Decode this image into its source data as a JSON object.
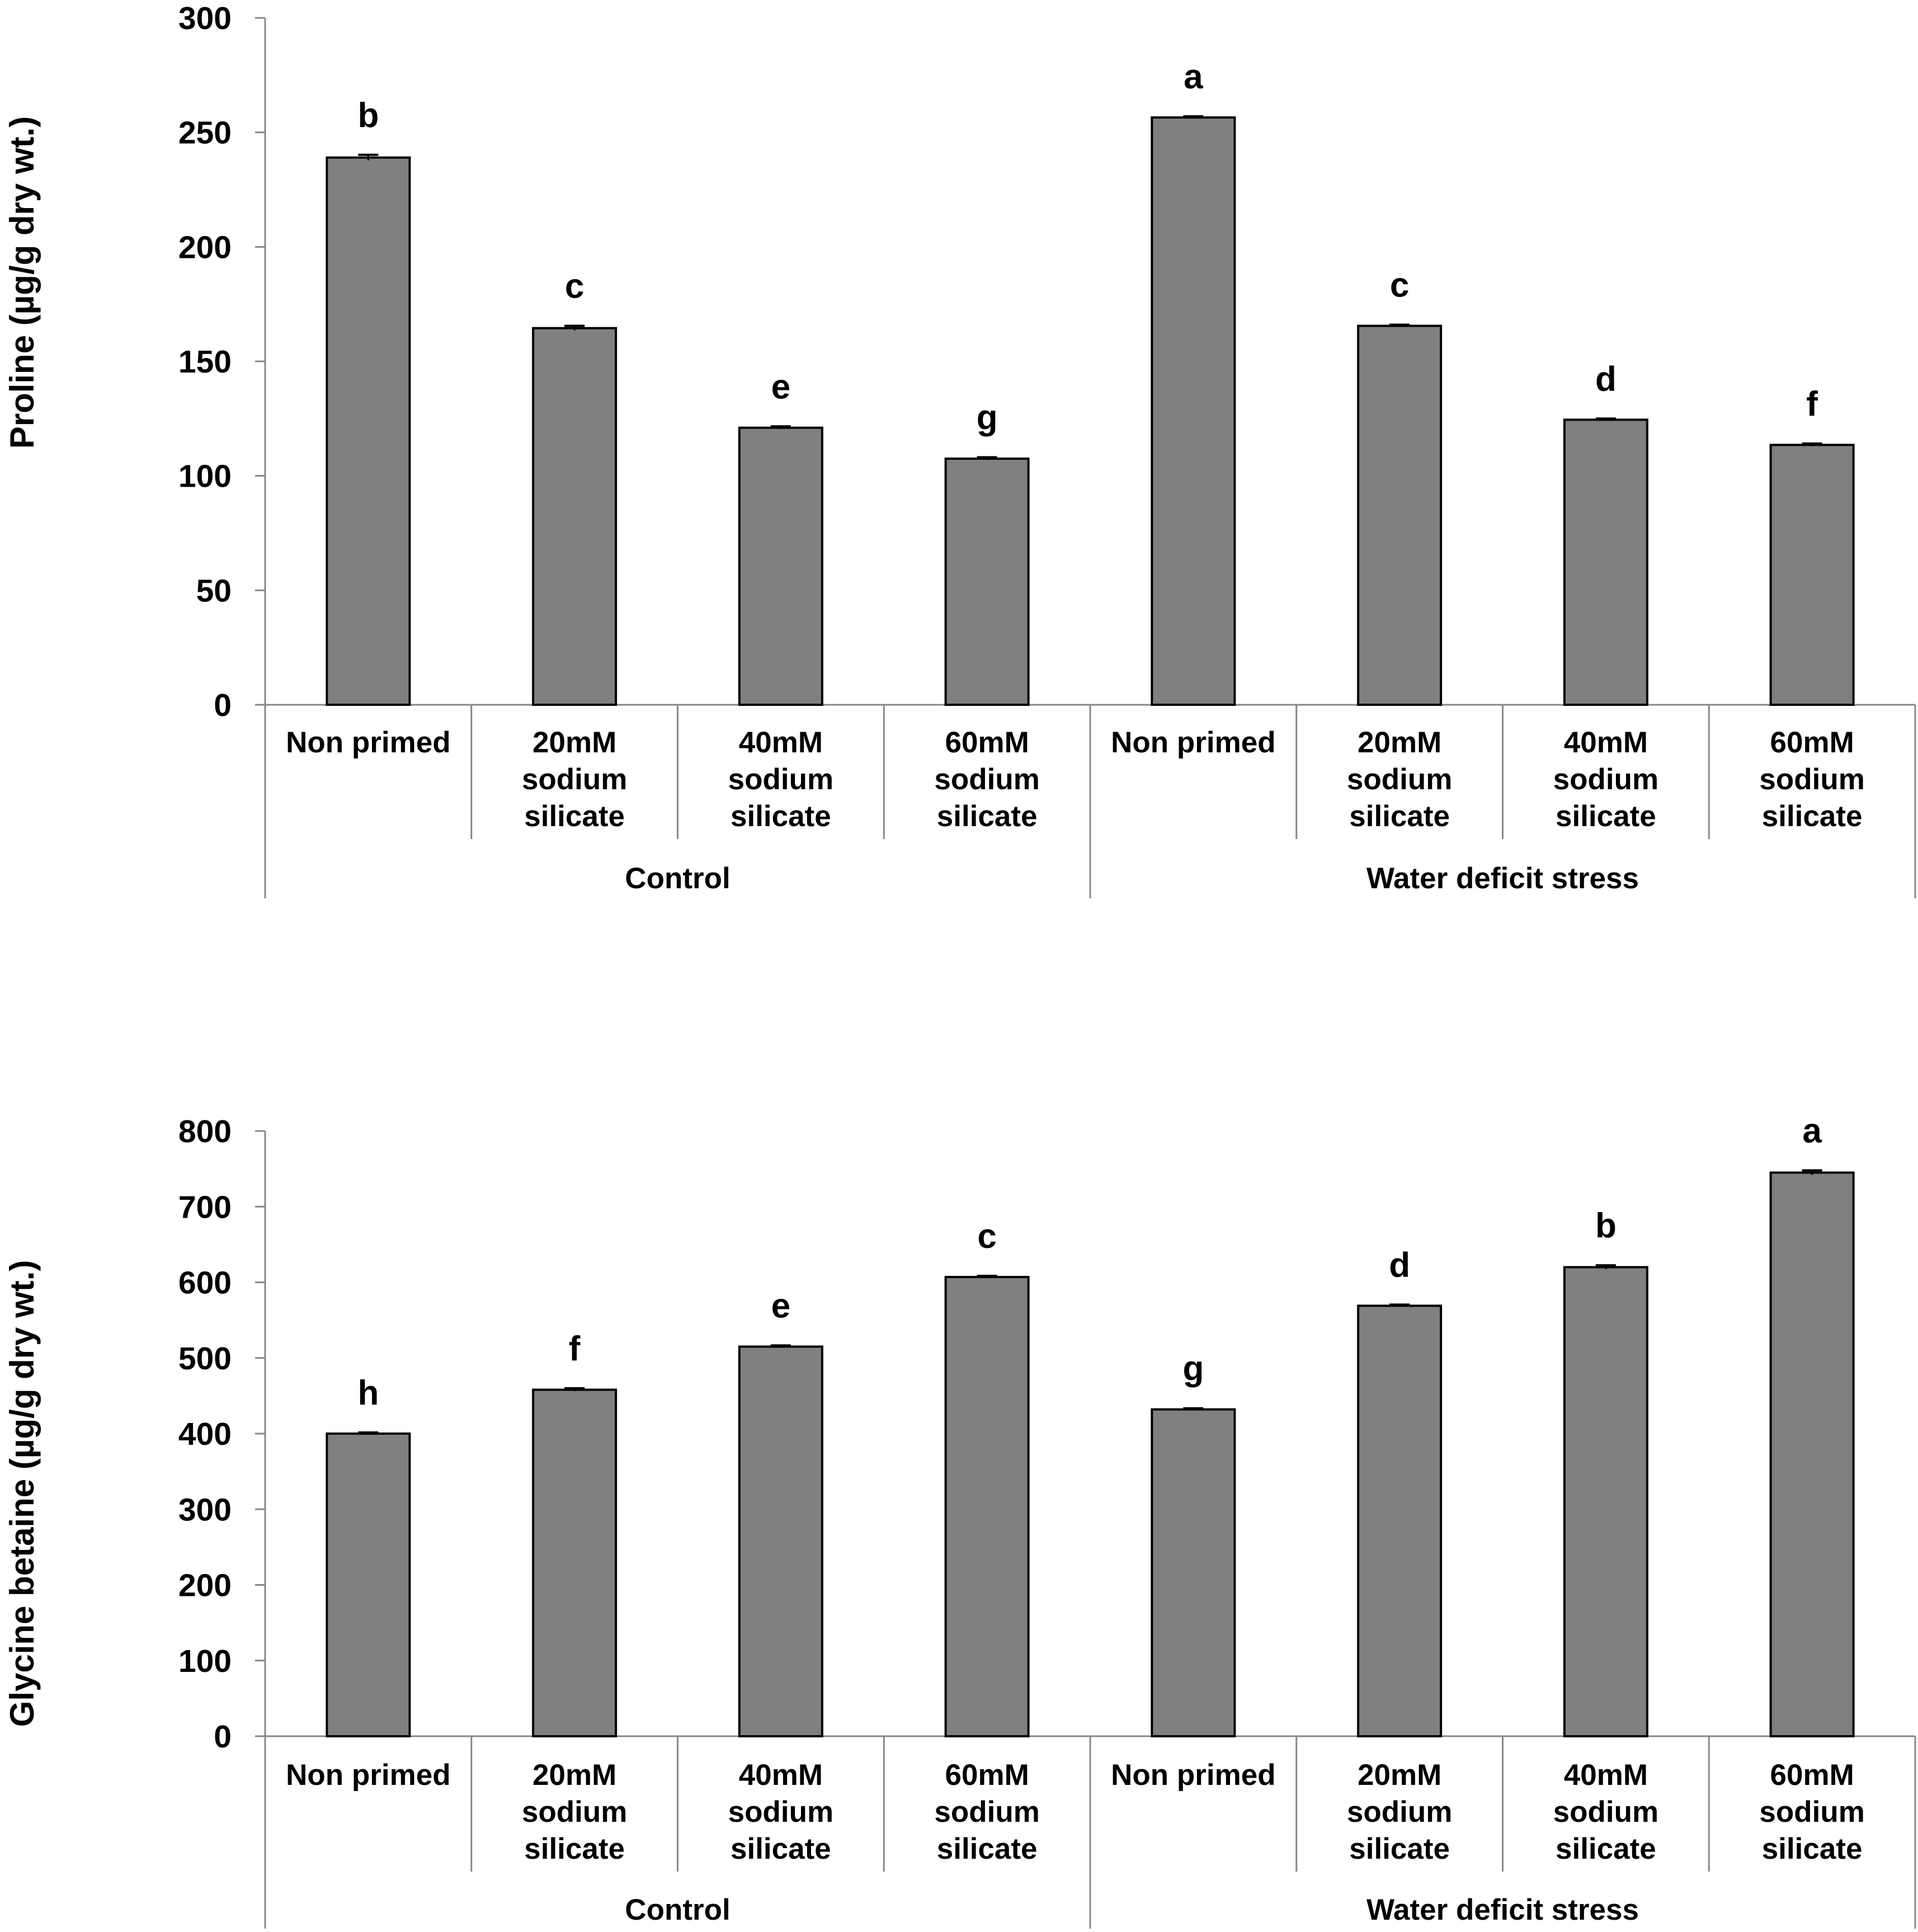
{
  "chart_data": [
    {
      "type": "bar",
      "ylabel": "Proline (µg/g dry wt.)",
      "ylim": [
        0,
        300
      ],
      "yticks": [
        0,
        50,
        100,
        150,
        200,
        250,
        300
      ],
      "categories": [
        [
          "Non primed"
        ],
        [
          "20mM",
          "sodium",
          "silicate"
        ],
        [
          "40mM",
          "sodium",
          "silicate"
        ],
        [
          "60mM",
          "sodium",
          "silicate"
        ],
        [
          "Non primed"
        ],
        [
          "20mM",
          "sodium",
          "silicate"
        ],
        [
          "40mM",
          "sodium",
          "silicate"
        ],
        [
          "60mM",
          "sodium",
          "silicate"
        ]
      ],
      "groups": [
        {
          "label": "Control",
          "count": 4
        },
        {
          "label": "Water deficit stress",
          "count": 4
        }
      ],
      "values": [
        239,
        164.5,
        121,
        107.5,
        256.5,
        165.5,
        124.5,
        113.5
      ],
      "errors": [
        1.2,
        1.0,
        0.6,
        0.6,
        0.5,
        0.5,
        0.5,
        0.6
      ],
      "letters": [
        "b",
        "c",
        "e",
        "g",
        "a",
        "c",
        "d",
        "f"
      ]
    },
    {
      "type": "bar",
      "ylabel": "Glycine betaine (µg/g dry wt.)",
      "ylim": [
        0,
        800
      ],
      "yticks": [
        0,
        100,
        200,
        300,
        400,
        500,
        600,
        700,
        800
      ],
      "categories": [
        [
          "Non primed"
        ],
        [
          "20mM",
          "sodium",
          "silicate"
        ],
        [
          "40mM",
          "sodium",
          "silicate"
        ],
        [
          "60mM",
          "sodium",
          "silicate"
        ],
        [
          "Non primed"
        ],
        [
          "20mM",
          "sodium",
          "silicate"
        ],
        [
          "40mM",
          "sodium",
          "silicate"
        ],
        [
          "60mM",
          "sodium",
          "silicate"
        ]
      ],
      "groups": [
        {
          "label": "Control",
          "count": 4
        },
        {
          "label": "Water deficit stress",
          "count": 4
        }
      ],
      "values": [
        400,
        458,
        515,
        607,
        432,
        569,
        620,
        745
      ],
      "errors": [
        1.5,
        2.0,
        1.5,
        1.5,
        1.5,
        1.5,
        2.5,
        3.0
      ],
      "letters": [
        "h",
        "f",
        "e",
        "c",
        "g",
        "d",
        "b",
        "a"
      ]
    }
  ],
  "colors": {
    "bar_fill": "#808080",
    "bar_stroke": "#000000",
    "axis": "#888888"
  }
}
